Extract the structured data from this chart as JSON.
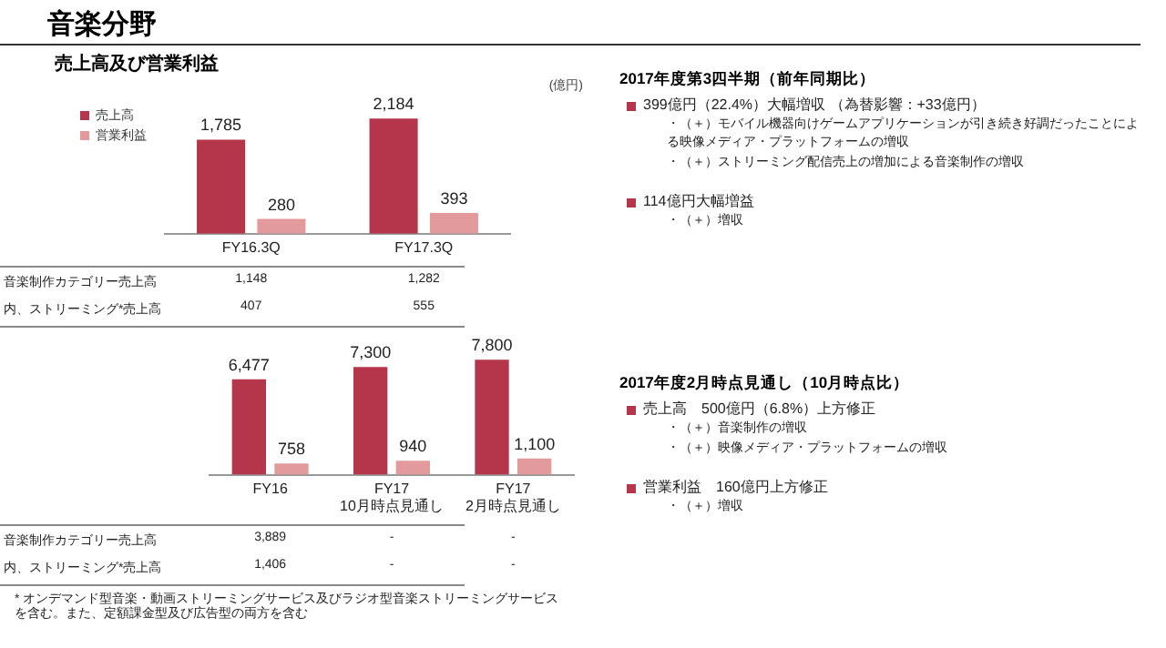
{
  "chart_data": [
    {
      "type": "bar",
      "title": "音楽分野",
      "subtitle": "売上高及び営業利益",
      "categories": [
        "FY16.3Q",
        "FY17.3Q"
      ],
      "series": [
        {
          "name": "売上高",
          "color": "#b5364a",
          "values": [
            1785,
            2184
          ],
          "value_labels": [
            "1,785",
            "2,184"
          ]
        },
        {
          "name": "営業利益",
          "color": "#e29a9c",
          "values": [
            280,
            393
          ],
          "value_labels": [
            "280",
            "393"
          ]
        }
      ],
      "legend": "top left",
      "grid": false,
      "annotations": [
        "(億円)",
        "音楽制作カテゴリー売上高",
        "1,148",
        "1,282",
        "内、ストリーミング*売上高",
        "407",
        "555"
      ]
    },
    {
      "type": "bar",
      "categories": [
        "FY16",
        "FY17\n10月時点見通し",
        "FY17\n2月時点見通し"
      ],
      "series": [
        {
          "color": "#b5364a",
          "values": [
            6477,
            7300,
            7800
          ],
          "value_labels": [
            "6,477",
            "7,300",
            "7,800"
          ]
        },
        {
          "color": "#e29a9c",
          "values": [
            758,
            940,
            1100
          ],
          "value_labels": [
            "758",
            "940",
            "1,100"
          ]
        }
      ],
      "legend": false,
      "grid": false,
      "annotations": [
        "音楽制作カテゴリー売上高",
        "3,889",
        "-",
        "-",
        "内、ストリーミング*売上高",
        "1,406",
        "-",
        "-",
        "* オンデマンド型音楽・動画ストリーミングサービス及びラジオ型音楽ストリーミングサービスを含む。また、定額課金型及び広告型の両方を含む"
      ]
    },
    {
      "type": "other",
      "title": "2017年度第3四半期（前年同期比）",
      "annotations": [
        "399億円（22.4%）大幅増収 （為替影響：+33億円）",
        "・（＋）モバイル機器向けゲームアプリケーションが引き続き好調だったことによる映像メディア・プラットフォームの増収",
        "・（＋）ストリーミング配信売上の増加による音楽制作の増収",
        "114億円大幅増益",
        "・（＋）増収"
      ]
    },
    {
      "type": "other",
      "title": "2017年度2月時点見通し（10月時点比）",
      "annotations": [
        "売上高　500億円（6.8%）上方修正",
        "・（＋）音楽制作の増収",
        "・（＋）映像メディア・プラットフォームの増収",
        "営業利益　160億円上方修正",
        "・（＋）増収"
      ]
    }
  ]
}
